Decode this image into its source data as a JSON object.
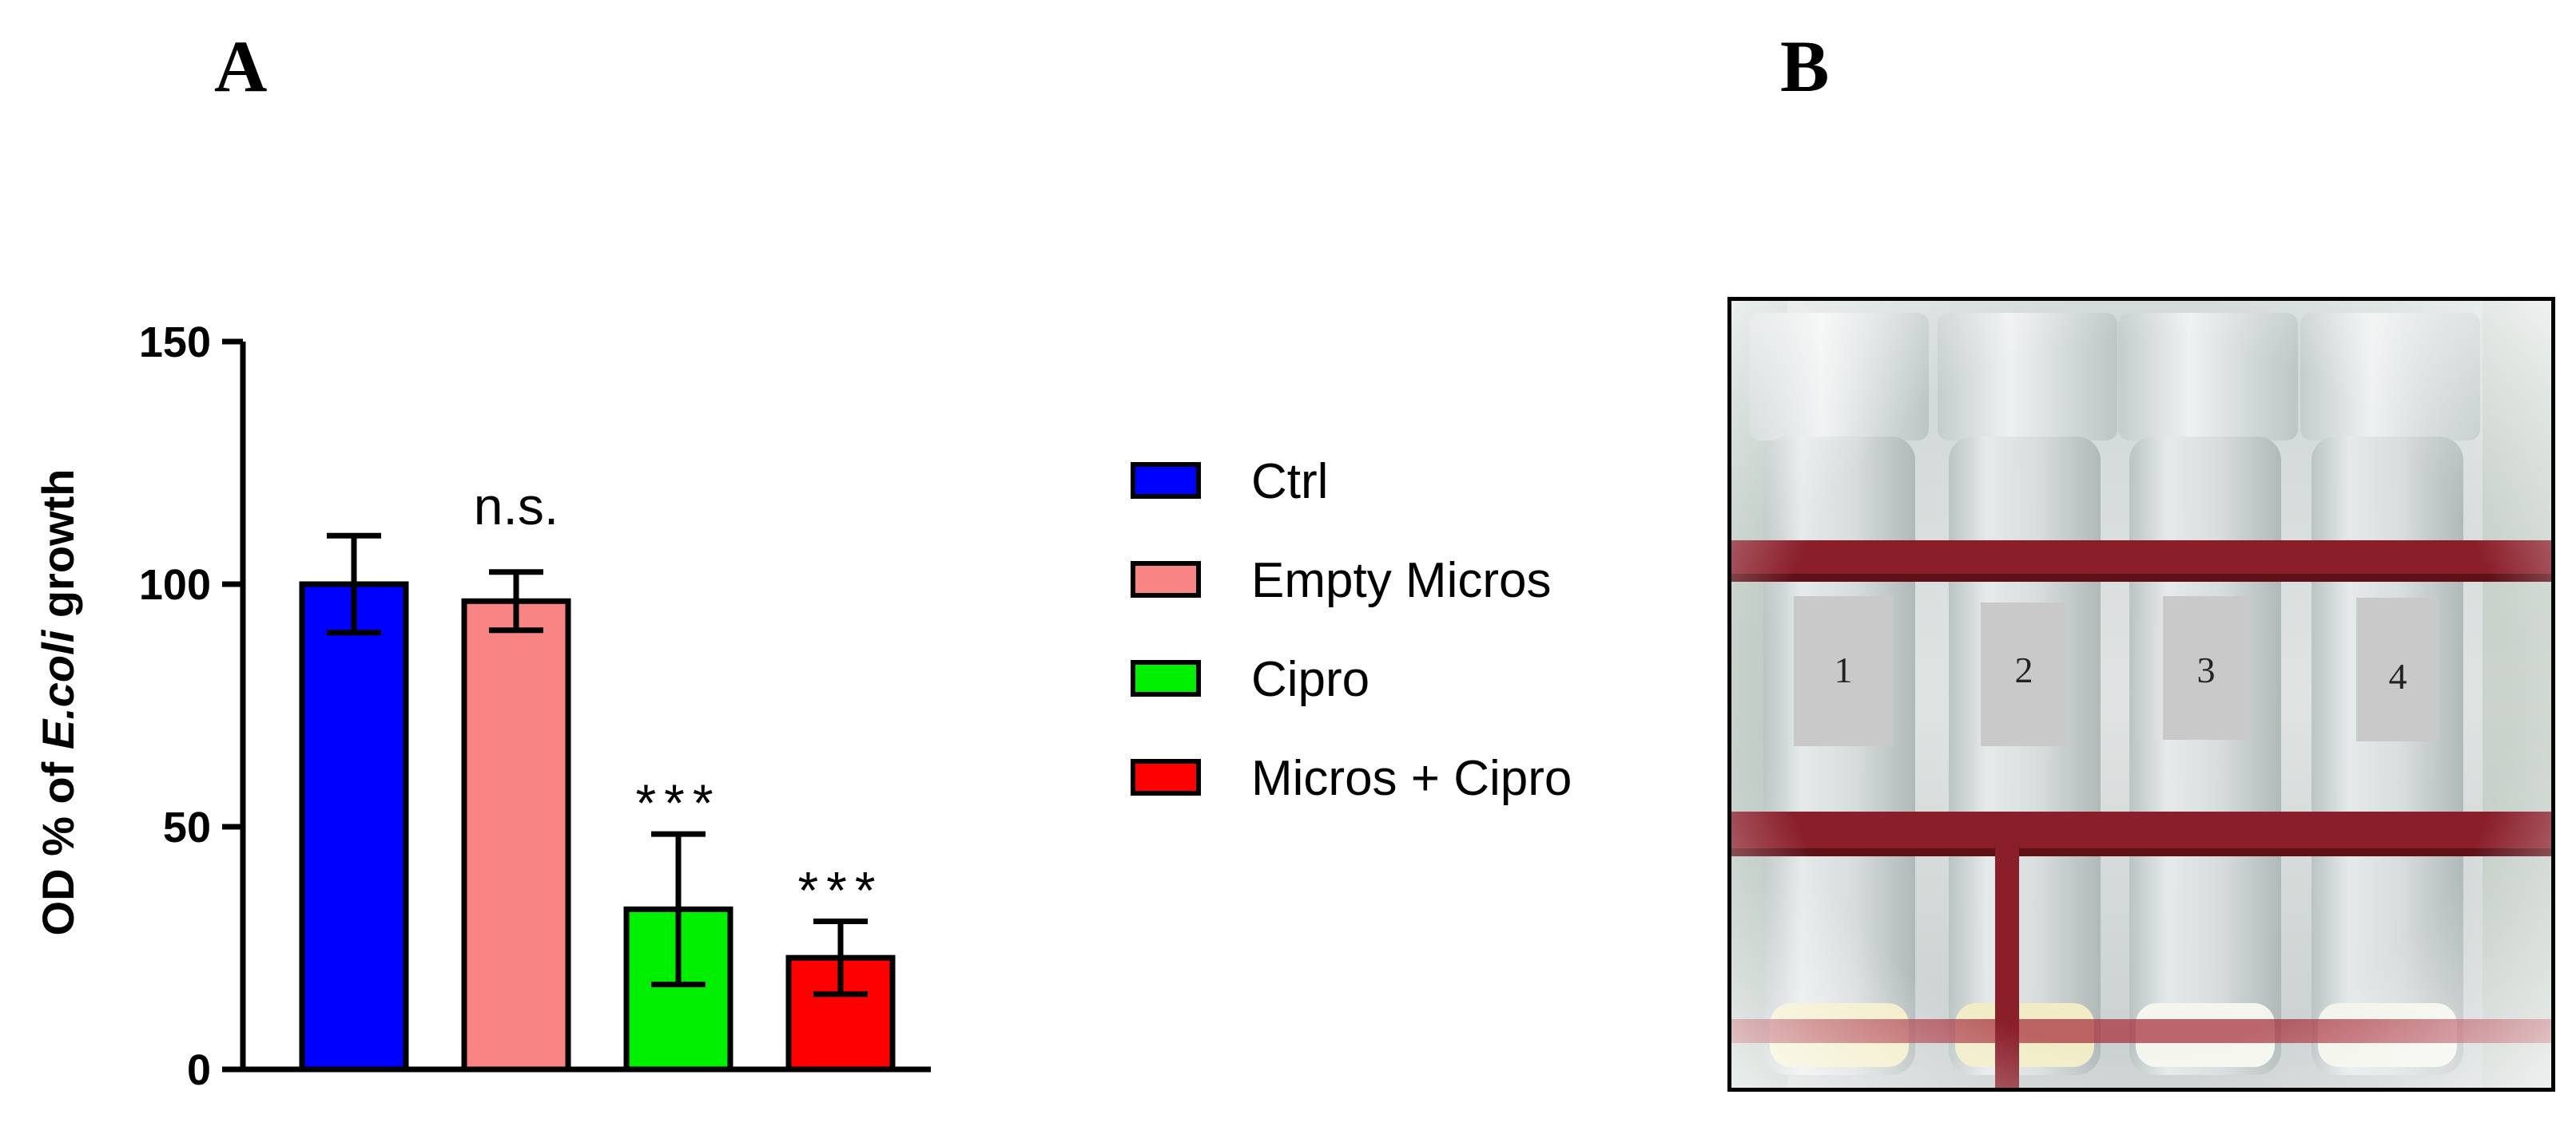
{
  "panels": {
    "a_label": "A",
    "b_label": "B"
  },
  "chart_data": {
    "type": "bar",
    "categories": [
      "Ctrl",
      "Empty Micros",
      "Cipro",
      "Micros + Cipro"
    ],
    "values": [
      100,
      96.5,
      33,
      23
    ],
    "errors": [
      10,
      6,
      15.5,
      7.5
    ],
    "colors": [
      "#0000ff",
      "#f88484",
      "#00ee00",
      "#ff0000"
    ],
    "annotations": [
      "",
      "n.s.",
      "***",
      "***"
    ],
    "ylabel_parts": [
      "OD % of ",
      "E.coli",
      " growth"
    ],
    "ylim": [
      0,
      150
    ],
    "yticks": [
      0,
      50,
      100,
      150
    ],
    "legend": [
      "Ctrl",
      "Empty Micros",
      "Cipro",
      "Micros + Cipro"
    ],
    "legend_position": "right",
    "grid": false
  },
  "photo": {
    "tube_labels": [
      "1",
      "2",
      "3",
      "4"
    ]
  }
}
